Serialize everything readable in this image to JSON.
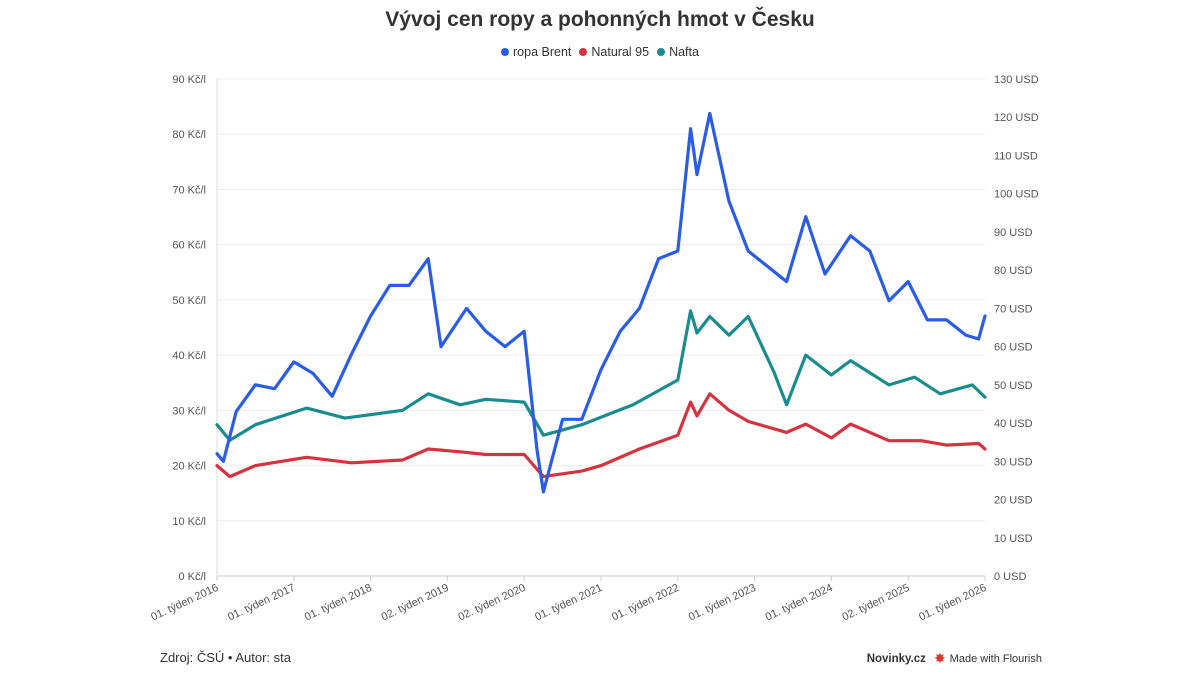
{
  "chart_data": {
    "type": "line",
    "title": "Vývoj cen ropy a pohonných hmot v Česku",
    "x_ticks": [
      {
        "x": "2016-01",
        "label": "01. týden 2016"
      },
      {
        "x": "2017-01",
        "label": "01. týden 2017"
      },
      {
        "x": "2018-01",
        "label": "01. týden 2018"
      },
      {
        "x": "2019-01",
        "label": "02. týden 2019"
      },
      {
        "x": "2020-01",
        "label": "02. týden 2020"
      },
      {
        "x": "2021-01",
        "label": "01. týden 2021"
      },
      {
        "x": "2022-01",
        "label": "01. týden 2022"
      },
      {
        "x": "2023-01",
        "label": "01. týden 2023"
      },
      {
        "x": "2024-01",
        "label": "01. týden 2024"
      },
      {
        "x": "2025-01",
        "label": "02. týden 2025"
      },
      {
        "x": "2026-01",
        "label": "01. týden 2026"
      }
    ],
    "y_left": {
      "range": [
        0,
        90
      ],
      "ticks": [
        0,
        10,
        20,
        30,
        40,
        50,
        60,
        70,
        80,
        90
      ],
      "unit": "Kč/l"
    },
    "y_right": {
      "range": [
        0,
        130
      ],
      "ticks": [
        0,
        10,
        20,
        30,
        40,
        50,
        60,
        70,
        80,
        90,
        100,
        110,
        120,
        130
      ],
      "unit": "USD"
    },
    "grid": true,
    "legend_placement": "top",
    "series": [
      {
        "name": "ropa Brent",
        "color": "#2a5ce6",
        "axis": "right",
        "points": [
          [
            "2016-01",
            32
          ],
          [
            "2016-02",
            30
          ],
          [
            "2016-04",
            43
          ],
          [
            "2016-07",
            50
          ],
          [
            "2016-10",
            49
          ],
          [
            "2017-01",
            56
          ],
          [
            "2017-04",
            53
          ],
          [
            "2017-07",
            47
          ],
          [
            "2017-10",
            58
          ],
          [
            "2018-01",
            68
          ],
          [
            "2018-04",
            76
          ],
          [
            "2018-07",
            76
          ],
          [
            "2018-10",
            83
          ],
          [
            "2018-12",
            60
          ],
          [
            "2019-04",
            70
          ],
          [
            "2019-07",
            64
          ],
          [
            "2019-10",
            60
          ],
          [
            "2020-01",
            64
          ],
          [
            "2020-03",
            33
          ],
          [
            "2020-04",
            22
          ],
          [
            "2020-07",
            41
          ],
          [
            "2020-10",
            41
          ],
          [
            "2021-01",
            54
          ],
          [
            "2021-04",
            64
          ],
          [
            "2021-07",
            70
          ],
          [
            "2021-10",
            83
          ],
          [
            "2022-01",
            85
          ],
          [
            "2022-03",
            117
          ],
          [
            "2022-04",
            105
          ],
          [
            "2022-06",
            121
          ],
          [
            "2022-09",
            98
          ],
          [
            "2022-12",
            85
          ],
          [
            "2023-03",
            81
          ],
          [
            "2023-06",
            77
          ],
          [
            "2023-09",
            94
          ],
          [
            "2023-12",
            79
          ],
          [
            "2024-04",
            89
          ],
          [
            "2024-07",
            85
          ],
          [
            "2024-10",
            72
          ],
          [
            "2025-01",
            77
          ],
          [
            "2025-04",
            67
          ],
          [
            "2025-07",
            67
          ],
          [
            "2025-10",
            63
          ],
          [
            "2025-12",
            62
          ],
          [
            "2026-01",
            68
          ]
        ]
      },
      {
        "name": "Natural 95",
        "color": "#d6323f",
        "axis": "left",
        "points": [
          [
            "2016-01",
            20
          ],
          [
            "2016-03",
            18
          ],
          [
            "2016-07",
            20
          ],
          [
            "2017-03",
            21.5
          ],
          [
            "2017-10",
            20.5
          ],
          [
            "2018-06",
            21
          ],
          [
            "2018-10",
            23
          ],
          [
            "2019-03",
            22.5
          ],
          [
            "2019-07",
            22
          ],
          [
            "2020-01",
            22
          ],
          [
            "2020-04",
            18
          ],
          [
            "2020-10",
            19
          ],
          [
            "2021-01",
            20
          ],
          [
            "2021-07",
            23
          ],
          [
            "2022-01",
            25.5
          ],
          [
            "2022-03",
            31.5
          ],
          [
            "2022-04",
            29
          ],
          [
            "2022-06",
            33
          ],
          [
            "2022-09",
            30
          ],
          [
            "2022-12",
            28
          ],
          [
            "2023-06",
            26
          ],
          [
            "2023-09",
            27.5
          ],
          [
            "2024-01",
            25
          ],
          [
            "2024-04",
            27.5
          ],
          [
            "2024-10",
            24.5
          ],
          [
            "2025-03",
            24.5
          ],
          [
            "2025-07",
            23.7
          ],
          [
            "2025-12",
            24
          ],
          [
            "2026-01",
            23
          ]
        ]
      },
      {
        "name": "Nafta",
        "color": "#1a8c8f",
        "axis": "left",
        "points": [
          [
            "2016-01",
            27.4
          ],
          [
            "2016-03",
            24.6
          ],
          [
            "2016-07",
            27.4
          ],
          [
            "2017-03",
            30.4
          ],
          [
            "2017-09",
            28.6
          ],
          [
            "2018-06",
            30
          ],
          [
            "2018-10",
            33
          ],
          [
            "2019-03",
            31
          ],
          [
            "2019-07",
            32
          ],
          [
            "2020-01",
            31.5
          ],
          [
            "2020-04",
            25.5
          ],
          [
            "2020-10",
            27.4
          ],
          [
            "2021-06",
            31
          ],
          [
            "2022-01",
            35.5
          ],
          [
            "2022-03",
            48
          ],
          [
            "2022-04",
            44
          ],
          [
            "2022-06",
            47
          ],
          [
            "2022-09",
            43.6
          ],
          [
            "2022-12",
            47
          ],
          [
            "2023-04",
            37
          ],
          [
            "2023-06",
            31
          ],
          [
            "2023-09",
            40
          ],
          [
            "2024-01",
            36.4
          ],
          [
            "2024-04",
            39
          ],
          [
            "2024-10",
            34.6
          ],
          [
            "2025-02",
            36
          ],
          [
            "2025-06",
            33
          ],
          [
            "2025-11",
            34.6
          ],
          [
            "2026-01",
            32.4
          ]
        ]
      }
    ]
  },
  "footer": {
    "source": "Zdroj: ČSÚ • Autor: sta",
    "brand": "Novinky.cz",
    "flourish": "Made with Flourish"
  }
}
